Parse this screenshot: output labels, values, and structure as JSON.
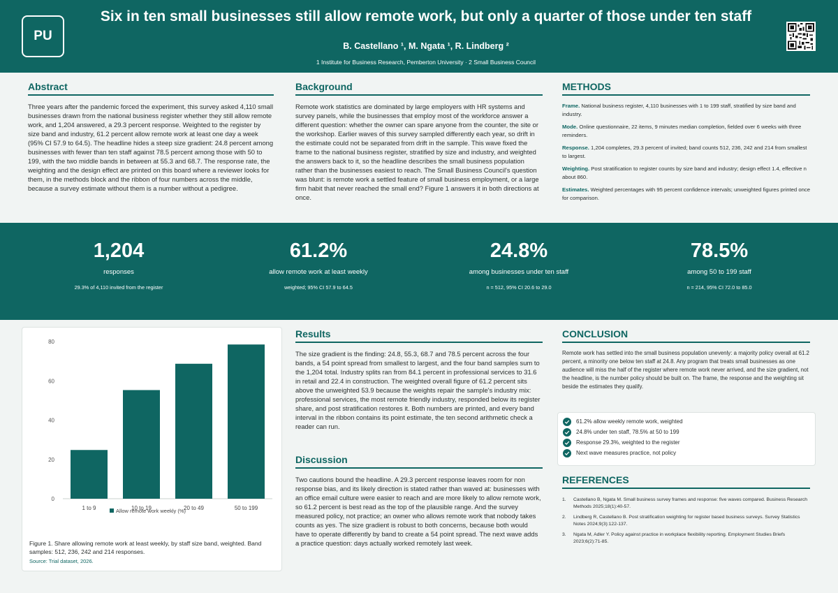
{
  "header": {
    "logo_text": "PU",
    "title": "Six in ten small businesses still allow remote work, but only a quarter of those under ten staff",
    "authors": "B. Castellano ¹, M. Ngata ¹, R. Lindberg ²",
    "affiliations": "1 Institute for Business Research, Pemberton University · 2 Small Business Council"
  },
  "abstract": {
    "title": "Abstract",
    "text": "Three years after the pandemic forced the experiment, this survey asked 4,110 small businesses drawn from the national business register whether they still allow remote work, and 1,204 answered, a 29.3 percent response. Weighted to the register by size band and industry, 61.2 percent allow remote work at least one day a week (95% CI 57.9 to 64.5). The headline hides a steep size gradient: 24.8 percent among businesses with fewer than ten staff against 78.5 percent among those with 50 to 199, with the two middle bands in between at 55.3 and 68.7. The response rate, the weighting and the design effect are printed on this board where a reviewer looks for them, in the methods block and the ribbon of four numbers across the middle, because a survey estimate without them is a number without a pedigree."
  },
  "background": {
    "title": "Background",
    "text": "Remote work statistics are dominated by large employers with HR systems and survey panels, while the businesses that employ most of the workforce answer a different question: whether the owner can spare anyone from the counter, the site or the workshop. Earlier waves of this survey sampled differently each year, so drift in the estimate could not be separated from drift in the sample. This wave fixed the frame to the national business register, stratified by size and industry, and weighted the answers back to it, so the headline describes the small business population rather than the businesses easiest to reach. The Small Business Council's question was blunt: is remote work a settled feature of small business employment, or a large firm habit that never reached the small end? Figure 1 answers it in both directions at once."
  },
  "methods": {
    "title": "METHODS",
    "items": [
      {
        "label": "Frame.",
        "text": " National business register, 4,110 businesses with 1 to 199 staff, stratified by size band and industry."
      },
      {
        "label": "Mode.",
        "text": " Online questionnaire, 22 items, 9 minutes median completion, fielded over 6 weeks with three reminders."
      },
      {
        "label": "Response.",
        "text": " 1,204 completes, 29.3 percent of invited; band counts 512, 236, 242 and 214 from smallest to largest."
      },
      {
        "label": "Weighting.",
        "text": " Post stratification to register counts by size band and industry; design effect 1.4, effective n about 860."
      },
      {
        "label": "Estimates.",
        "text": " Weighted percentages with 95 percent confidence intervals; unweighted figures printed once for comparison."
      }
    ]
  },
  "stats": [
    {
      "value": "1,204",
      "label": "responses",
      "note": "29.3% of 4,110 invited from the register"
    },
    {
      "value": "61.2%",
      "label": "allow remote work at least weekly",
      "note": "weighted; 95% CI 57.9 to 64.5"
    },
    {
      "value": "24.8%",
      "label": "among businesses under ten staff",
      "note": "n = 512, 95% CI 20.6 to 29.0"
    },
    {
      "value": "78.5%",
      "label": "among 50 to 199 staff",
      "note": "n = 214, 95% CI 72.0 to 85.0"
    }
  ],
  "figure": {
    "caption": "Figure 1. Share allowing remote work at least weekly, by staff size band, weighted. Band samples: 512, 236, 242 and 214 responses.",
    "source": "Source: Trial dataset, 2026."
  },
  "chart_data": {
    "type": "bar",
    "categories": [
      "1 to 9",
      "10 to 19",
      "20 to 49",
      "50 to 199"
    ],
    "series": [
      {
        "name": "Allow remote work weekly (%)",
        "values": [
          24.8,
          55.3,
          68.7,
          78.5
        ]
      }
    ],
    "ylim": [
      0,
      80
    ],
    "yticks": [
      0,
      20,
      40,
      60,
      80
    ],
    "grid": false,
    "legend": "bottom",
    "color": "#0f6662"
  },
  "results": {
    "title": "Results",
    "text": "The size gradient is the finding: 24.8, 55.3, 68.7 and 78.5 percent across the four bands, a 54 point spread from smallest to largest, and the four band samples sum to the 1,204 total. Industry splits ran from 84.1 percent in professional services to 31.6 in retail and 22.4 in construction. The weighted overall figure of 61.2 percent sits above the unweighted 53.9 because the weights repair the sample's industry mix: professional services, the most remote friendly industry, responded below its register share, and post stratification restores it. Both numbers are printed, and every band interval in the ribbon contains its point estimate, the ten second arithmetic check a reader can run."
  },
  "discussion": {
    "title": "Discussion",
    "text": "Two cautions bound the headline. A 29.3 percent response leaves room for non response bias, and its likely direction is stated rather than waved at: businesses with an office email culture were easier to reach and are more likely to allow remote work, so 61.2 percent is best read as the top of the plausible range. And the survey measured policy, not practice; an owner who allows remote work that nobody takes counts as yes. The size gradient is robust to both concerns, because both would have to operate differently by band to create a 54 point spread. The next wave adds a practice question: days actually worked remotely last week."
  },
  "conclusion": {
    "title": "CONCLUSION",
    "text": "Remote work has settled into the small business population unevenly: a majority policy overall at 61.2 percent, a minority one below ten staff at 24.8. Any program that treats small businesses as one audience will miss the half of the register where remote work never arrived, and the size gradient, not the headline, is the number policy should be built on. The frame, the response and the weighting sit beside the estimates they qualify.",
    "checks": [
      "61.2% allow weekly remote work, weighted",
      "24.8% under ten staff, 78.5% at 50 to 199",
      "Response 29.3%, weighted to the register",
      "Next wave measures practice, not policy"
    ]
  },
  "references": {
    "title": "REFERENCES",
    "items": [
      {
        "num": "1.",
        "text": "Castellano B, Ngata M. Small business survey frames and response: five waves compared. Business Research Methods 2025;18(1):40-57."
      },
      {
        "num": "2.",
        "text": "Lindberg R, Castellano B. Post stratification weighting for register based business surveys. Survey Statistics Notes 2024;9(3):122-137."
      },
      {
        "num": "3.",
        "text": "Ngata M, Adler Y. Policy against practice in workplace flexibility reporting. Employment Studies Briefs 2023;6(2):71-85."
      }
    ]
  }
}
